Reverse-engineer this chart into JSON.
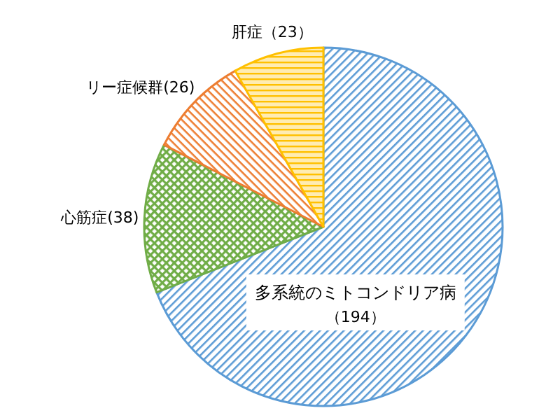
{
  "chart_data": {
    "type": "pie",
    "categories": [
      "多系統のミトコンドリア病",
      "心筋症",
      "リー症候群",
      "肝症"
    ],
    "values": [
      194,
      38,
      26,
      23
    ],
    "value_labels": [
      "（194）",
      "(38)",
      "(26)",
      "（23）"
    ],
    "colors": [
      "#5b9bd5",
      "#70ad47",
      "#ed7d31",
      "#ffc000"
    ]
  }
}
